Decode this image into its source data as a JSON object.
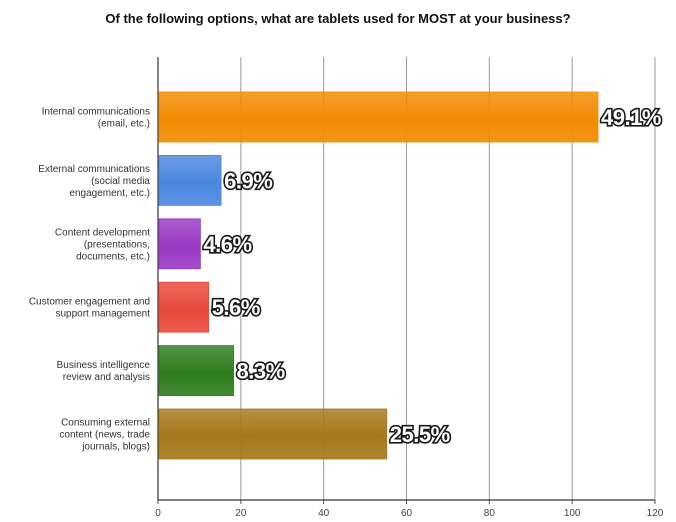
{
  "chart_data": {
    "type": "bar",
    "orientation": "horizontal",
    "title": "Of the following options, what are tablets used for MOST at your business?",
    "xlabel": "",
    "ylabel": "",
    "xlim": [
      0,
      120
    ],
    "x_ticks": [
      "0",
      "20",
      "40",
      "60",
      "80",
      "100",
      "120"
    ],
    "grid": true,
    "legend": "none",
    "categories": [
      [
        "Internal communications",
        "(email, etc.)"
      ],
      [
        "External communications",
        "(social media",
        "engagement, etc.)"
      ],
      [
        "Content development",
        "(presentations,",
        "documents, etc.)"
      ],
      [
        "Customer engagement and",
        "support management"
      ],
      [
        "Business intelligence",
        "review and analysis"
      ],
      [
        "Consuming external",
        "content (news, trade",
        "journals, blogs)"
      ]
    ],
    "values": [
      106,
      15,
      10,
      12,
      18,
      55
    ],
    "data_labels": [
      "49.1%",
      "6.9%",
      "4.6%",
      "5.6%",
      "8.3%",
      "25.5%"
    ],
    "colors": [
      "#f28a00",
      "#4a86e0",
      "#9a39c4",
      "#e8493a",
      "#2f7d1f",
      "#a5781a"
    ]
  }
}
